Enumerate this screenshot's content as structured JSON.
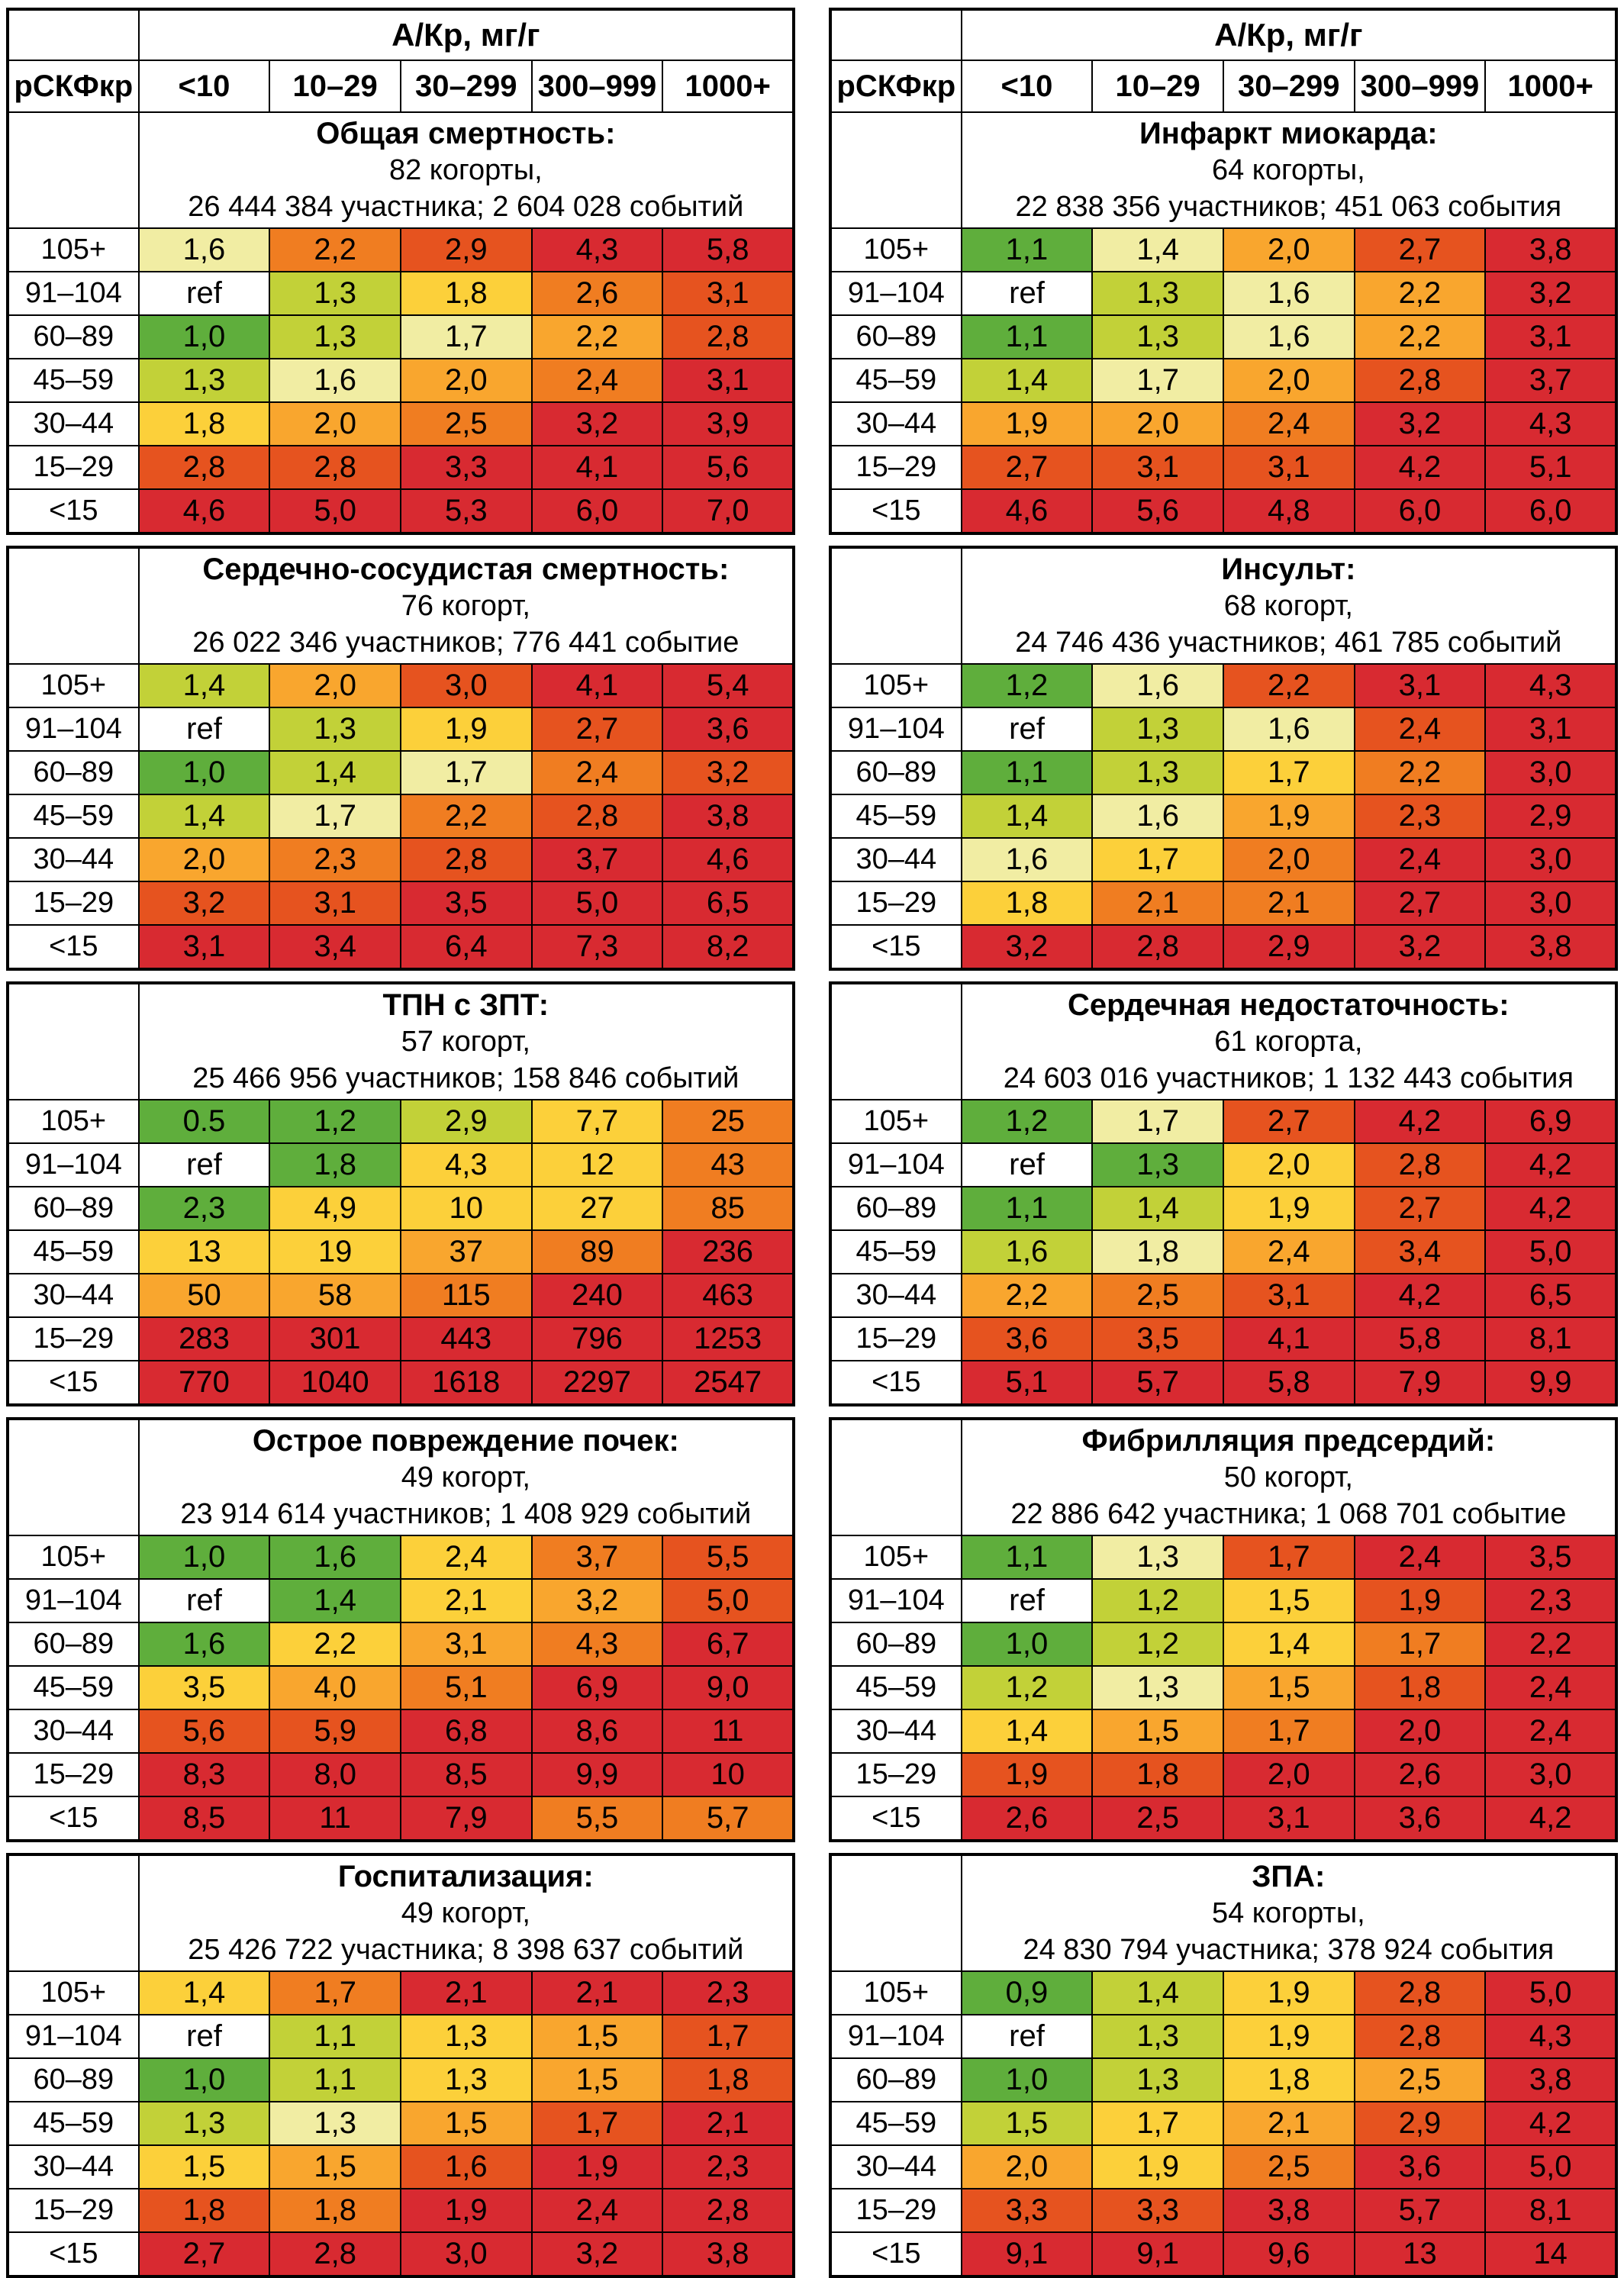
{
  "chart_data": {
    "type": "heatmap",
    "acr_header": "А/Кр, мг/г",
    "egfr_header": "рСКФкр",
    "columns": [
      "<10",
      "10–29",
      "30–299",
      "300–999",
      "1000+"
    ],
    "row_labels": [
      "105+",
      "91–104",
      "60–89",
      "45–59",
      "30–44",
      "15–29",
      "<15"
    ],
    "palette": {
      "G": "#5fae3c",
      "YG": "#c2d138",
      "PY": "#f1eda3",
      "Y": "#fcd03a",
      "A": "#f9a62e",
      "O": "#f07d21",
      "V": "#e6531f",
      "R": "#d82a31",
      "W": "#ffffff"
    },
    "tables": [
      {
        "title": "Общая смертность:",
        "cohorts": "82 когорты,",
        "participants": "26 444 384 участника; 2 604 028 событий",
        "values": [
          [
            "1,6",
            "2,2",
            "2,9",
            "4,3",
            "5,8"
          ],
          [
            "ref",
            "1,3",
            "1,8",
            "2,6",
            "3,1"
          ],
          [
            "1,0",
            "1,3",
            "1,7",
            "2,2",
            "2,8"
          ],
          [
            "1,3",
            "1,6",
            "2,0",
            "2,4",
            "3,1"
          ],
          [
            "1,8",
            "2,0",
            "2,5",
            "3,2",
            "3,9"
          ],
          [
            "2,8",
            "2,8",
            "3,3",
            "4,1",
            "5,6"
          ],
          [
            "4,6",
            "5,0",
            "5,3",
            "6,0",
            "7,0"
          ]
        ],
        "colors": [
          [
            "PY",
            "O",
            "V",
            "R",
            "R"
          ],
          [
            "W",
            "YG",
            "Y",
            "O",
            "V"
          ],
          [
            "G",
            "YG",
            "PY",
            "A",
            "V"
          ],
          [
            "YG",
            "PY",
            "A",
            "O",
            "R"
          ],
          [
            "Y",
            "A",
            "O",
            "R",
            "R"
          ],
          [
            "V",
            "V",
            "R",
            "R",
            "R"
          ],
          [
            "R",
            "R",
            "R",
            "R",
            "R"
          ]
        ]
      },
      {
        "title": "Инфаркт миокарда:",
        "cohorts": "64 когорты,",
        "participants": "22 838 356 участников; 451 063 события",
        "values": [
          [
            "1,1",
            "1,4",
            "2,0",
            "2,7",
            "3,8"
          ],
          [
            "ref",
            "1,3",
            "1,6",
            "2,2",
            "3,2"
          ],
          [
            "1,1",
            "1,3",
            "1,6",
            "2,2",
            "3,1"
          ],
          [
            "1,4",
            "1,7",
            "2,0",
            "2,8",
            "3,7"
          ],
          [
            "1,9",
            "2,0",
            "2,4",
            "3,2",
            "4,3"
          ],
          [
            "2,7",
            "3,1",
            "3,1",
            "4,2",
            "5,1"
          ],
          [
            "4,6",
            "5,6",
            "4,8",
            "6,0",
            "6,0"
          ]
        ],
        "colors": [
          [
            "G",
            "PY",
            "A",
            "V",
            "R"
          ],
          [
            "W",
            "YG",
            "PY",
            "A",
            "R"
          ],
          [
            "G",
            "YG",
            "PY",
            "A",
            "R"
          ],
          [
            "YG",
            "PY",
            "A",
            "V",
            "R"
          ],
          [
            "A",
            "A",
            "O",
            "R",
            "R"
          ],
          [
            "V",
            "V",
            "V",
            "R",
            "R"
          ],
          [
            "R",
            "R",
            "R",
            "R",
            "R"
          ]
        ]
      },
      {
        "title": "Сердечно-сосудистая смертность:",
        "cohorts": "76 когорт,",
        "participants": "26 022 346 участников; 776 441 событие",
        "values": [
          [
            "1,4",
            "2,0",
            "3,0",
            "4,1",
            "5,4"
          ],
          [
            "ref",
            "1,3",
            "1,9",
            "2,7",
            "3,6"
          ],
          [
            "1,0",
            "1,4",
            "1,7",
            "2,4",
            "3,2"
          ],
          [
            "1,4",
            "1,7",
            "2,2",
            "2,8",
            "3,8"
          ],
          [
            "2,0",
            "2,3",
            "2,8",
            "3,7",
            "4,6"
          ],
          [
            "3,2",
            "3,1",
            "3,5",
            "5,0",
            "6,5"
          ],
          [
            "3,1",
            "3,4",
            "6,4",
            "7,3",
            "8,2"
          ]
        ],
        "colors": [
          [
            "YG",
            "A",
            "V",
            "R",
            "R"
          ],
          [
            "W",
            "YG",
            "Y",
            "V",
            "R"
          ],
          [
            "G",
            "YG",
            "PY",
            "O",
            "V"
          ],
          [
            "YG",
            "PY",
            "O",
            "V",
            "R"
          ],
          [
            "A",
            "O",
            "V",
            "R",
            "R"
          ],
          [
            "V",
            "V",
            "R",
            "R",
            "R"
          ],
          [
            "R",
            "R",
            "R",
            "R",
            "R"
          ]
        ]
      },
      {
        "title": "Инсульт:",
        "cohorts": "68 когорт,",
        "participants": "24 746 436 участников; 461 785 событий",
        "values": [
          [
            "1,2",
            "1,6",
            "2,2",
            "3,1",
            "4,3"
          ],
          [
            "ref",
            "1,3",
            "1,6",
            "2,4",
            "3,1"
          ],
          [
            "1,1",
            "1,3",
            "1,7",
            "2,2",
            "3,0"
          ],
          [
            "1,4",
            "1,6",
            "1,9",
            "2,3",
            "2,9"
          ],
          [
            "1,6",
            "1,7",
            "2,0",
            "2,4",
            "3,0"
          ],
          [
            "1,8",
            "2,1",
            "2,1",
            "2,7",
            "3,0"
          ],
          [
            "3,2",
            "2,8",
            "2,9",
            "3,2",
            "3,8"
          ]
        ],
        "colors": [
          [
            "G",
            "PY",
            "V",
            "R",
            "R"
          ],
          [
            "W",
            "YG",
            "PY",
            "V",
            "R"
          ],
          [
            "G",
            "YG",
            "Y",
            "O",
            "R"
          ],
          [
            "YG",
            "PY",
            "A",
            "V",
            "R"
          ],
          [
            "PY",
            "Y",
            "O",
            "R",
            "R"
          ],
          [
            "Y",
            "O",
            "O",
            "R",
            "R"
          ],
          [
            "R",
            "R",
            "R",
            "R",
            "R"
          ]
        ]
      },
      {
        "title": "ТПН с ЗПТ:",
        "cohorts": "57 когорт,",
        "participants": "25 466 956 участников; 158 846 событий",
        "values": [
          [
            "0.5",
            "1,2",
            "2,9",
            "7,7",
            "25"
          ],
          [
            "ref",
            "1,8",
            "4,3",
            "12",
            "43"
          ],
          [
            "2,3",
            "4,9",
            "10",
            "27",
            "85"
          ],
          [
            "13",
            "19",
            "37",
            "89",
            "236"
          ],
          [
            "50",
            "58",
            "115",
            "240",
            "463"
          ],
          [
            "283",
            "301",
            "443",
            "796",
            "1253"
          ],
          [
            "770",
            "1040",
            "1618",
            "2297",
            "2547"
          ]
        ],
        "colors": [
          [
            "G",
            "G",
            "YG",
            "Y",
            "O"
          ],
          [
            "W",
            "G",
            "Y",
            "Y",
            "O"
          ],
          [
            "G",
            "Y",
            "Y",
            "Y",
            "O"
          ],
          [
            "Y",
            "Y",
            "A",
            "O",
            "R"
          ],
          [
            "A",
            "A",
            "O",
            "R",
            "R"
          ],
          [
            "R",
            "R",
            "R",
            "R",
            "R"
          ],
          [
            "R",
            "R",
            "R",
            "R",
            "R"
          ]
        ]
      },
      {
        "title": "Сердечная недостаточность:",
        "cohorts": "61 когорта,",
        "participants": "24 603 016 участников; 1 132 443 события",
        "values": [
          [
            "1,2",
            "1,7",
            "2,7",
            "4,2",
            "6,9"
          ],
          [
            "ref",
            "1,3",
            "2,0",
            "2,8",
            "4,2"
          ],
          [
            "1,1",
            "1,4",
            "1,9",
            "2,7",
            "4,2"
          ],
          [
            "1,6",
            "1,8",
            "2,4",
            "3,4",
            "5,0"
          ],
          [
            "2,2",
            "2,5",
            "3,1",
            "4,2",
            "6,5"
          ],
          [
            "3,6",
            "3,5",
            "4,1",
            "5,8",
            "8,1"
          ],
          [
            "5,1",
            "5,7",
            "5,8",
            "7,9",
            "9,9"
          ]
        ],
        "colors": [
          [
            "G",
            "PY",
            "V",
            "R",
            "R"
          ],
          [
            "W",
            "G",
            "Y",
            "V",
            "R"
          ],
          [
            "G",
            "YG",
            "Y",
            "V",
            "R"
          ],
          [
            "YG",
            "PY",
            "A",
            "V",
            "R"
          ],
          [
            "A",
            "O",
            "V",
            "R",
            "R"
          ],
          [
            "V",
            "V",
            "R",
            "R",
            "R"
          ],
          [
            "R",
            "R",
            "R",
            "R",
            "R"
          ]
        ]
      },
      {
        "title": "Острое повреждение почек:",
        "cohorts": "49 когорт,",
        "participants": "23 914 614 участников; 1 408 929 событий",
        "values": [
          [
            "1,0",
            "1,6",
            "2,4",
            "3,7",
            "5,5"
          ],
          [
            "ref",
            "1,4",
            "2,1",
            "3,2",
            "5,0"
          ],
          [
            "1,6",
            "2,2",
            "3,1",
            "4,3",
            "6,7"
          ],
          [
            "3,5",
            "4,0",
            "5,1",
            "6,9",
            "9,0"
          ],
          [
            "5,6",
            "5,9",
            "6,8",
            "8,6",
            "11"
          ],
          [
            "8,3",
            "8,0",
            "8,5",
            "9,9",
            "10"
          ],
          [
            "8,5",
            "11",
            "7,9",
            "5,5",
            "5,7"
          ]
        ],
        "colors": [
          [
            "G",
            "G",
            "Y",
            "O",
            "V"
          ],
          [
            "W",
            "G",
            "Y",
            "A",
            "V"
          ],
          [
            "G",
            "Y",
            "A",
            "O",
            "R"
          ],
          [
            "Y",
            "A",
            "O",
            "R",
            "R"
          ],
          [
            "V",
            "V",
            "R",
            "R",
            "R"
          ],
          [
            "R",
            "R",
            "R",
            "R",
            "R"
          ],
          [
            "R",
            "R",
            "R",
            "O",
            "O"
          ]
        ]
      },
      {
        "title": "Фибрилляция предсердий:",
        "cohorts": "50 когорт,",
        "participants": "22 886 642 участника; 1 068 701 событие",
        "values": [
          [
            "1,1",
            "1,3",
            "1,7",
            "2,4",
            "3,5"
          ],
          [
            "ref",
            "1,2",
            "1,5",
            "1,9",
            "2,3"
          ],
          [
            "1,0",
            "1,2",
            "1,4",
            "1,7",
            "2,2"
          ],
          [
            "1,2",
            "1,3",
            "1,5",
            "1,8",
            "2,4"
          ],
          [
            "1,4",
            "1,5",
            "1,7",
            "2,0",
            "2,4"
          ],
          [
            "1,9",
            "1,8",
            "2,0",
            "2,6",
            "3,0"
          ],
          [
            "2,6",
            "2,5",
            "3,1",
            "3,6",
            "4,2"
          ]
        ],
        "colors": [
          [
            "G",
            "PY",
            "V",
            "R",
            "R"
          ],
          [
            "W",
            "YG",
            "Y",
            "V",
            "R"
          ],
          [
            "G",
            "YG",
            "Y",
            "O",
            "R"
          ],
          [
            "YG",
            "PY",
            "A",
            "V",
            "R"
          ],
          [
            "Y",
            "A",
            "O",
            "R",
            "R"
          ],
          [
            "V",
            "V",
            "R",
            "R",
            "R"
          ],
          [
            "R",
            "R",
            "R",
            "R",
            "R"
          ]
        ]
      },
      {
        "title": "Госпитализация:",
        "cohorts": "49 когорт,",
        "participants": "25 426 722 участника; 8 398 637 событий",
        "values": [
          [
            "1,4",
            "1,7",
            "2,1",
            "2,1",
            "2,3"
          ],
          [
            "ref",
            "1,1",
            "1,3",
            "1,5",
            "1,7"
          ],
          [
            "1,0",
            "1,1",
            "1,3",
            "1,5",
            "1,8"
          ],
          [
            "1,3",
            "1,3",
            "1,5",
            "1,7",
            "2,1"
          ],
          [
            "1,5",
            "1,5",
            "1,6",
            "1,9",
            "2,3"
          ],
          [
            "1,8",
            "1,8",
            "1,9",
            "2,4",
            "2,8"
          ],
          [
            "2,7",
            "2,8",
            "3,0",
            "3,2",
            "3,8"
          ]
        ],
        "colors": [
          [
            "Y",
            "O",
            "R",
            "R",
            "R"
          ],
          [
            "W",
            "YG",
            "Y",
            "A",
            "V"
          ],
          [
            "G",
            "YG",
            "Y",
            "A",
            "V"
          ],
          [
            "YG",
            "PY",
            "A",
            "V",
            "R"
          ],
          [
            "Y",
            "A",
            "V",
            "R",
            "R"
          ],
          [
            "V",
            "O",
            "R",
            "R",
            "R"
          ],
          [
            "R",
            "R",
            "R",
            "R",
            "R"
          ]
        ]
      },
      {
        "title": "ЗПА:",
        "cohorts": "54 когорты,",
        "participants": "24 830 794 участника; 378 924 события",
        "values": [
          [
            "0,9",
            "1,4",
            "1,9",
            "2,8",
            "5,0"
          ],
          [
            "ref",
            "1,3",
            "1,9",
            "2,8",
            "4,3"
          ],
          [
            "1,0",
            "1,3",
            "1,8",
            "2,5",
            "3,8"
          ],
          [
            "1,5",
            "1,7",
            "2,1",
            "2,9",
            "4,2"
          ],
          [
            "2,0",
            "1,9",
            "2,5",
            "3,6",
            "5,0"
          ],
          [
            "3,3",
            "3,3",
            "3,8",
            "5,7",
            "8,1"
          ],
          [
            "9,1",
            "9,1",
            "9,6",
            "13",
            "14"
          ]
        ],
        "colors": [
          [
            "G",
            "YG",
            "Y",
            "V",
            "R"
          ],
          [
            "W",
            "YG",
            "Y",
            "V",
            "R"
          ],
          [
            "G",
            "YG",
            "Y",
            "A",
            "R"
          ],
          [
            "YG",
            "Y",
            "A",
            "V",
            "R"
          ],
          [
            "A",
            "Y",
            "O",
            "R",
            "R"
          ],
          [
            "V",
            "V",
            "R",
            "R",
            "R"
          ],
          [
            "R",
            "R",
            "R",
            "R",
            "R"
          ]
        ]
      }
    ]
  }
}
